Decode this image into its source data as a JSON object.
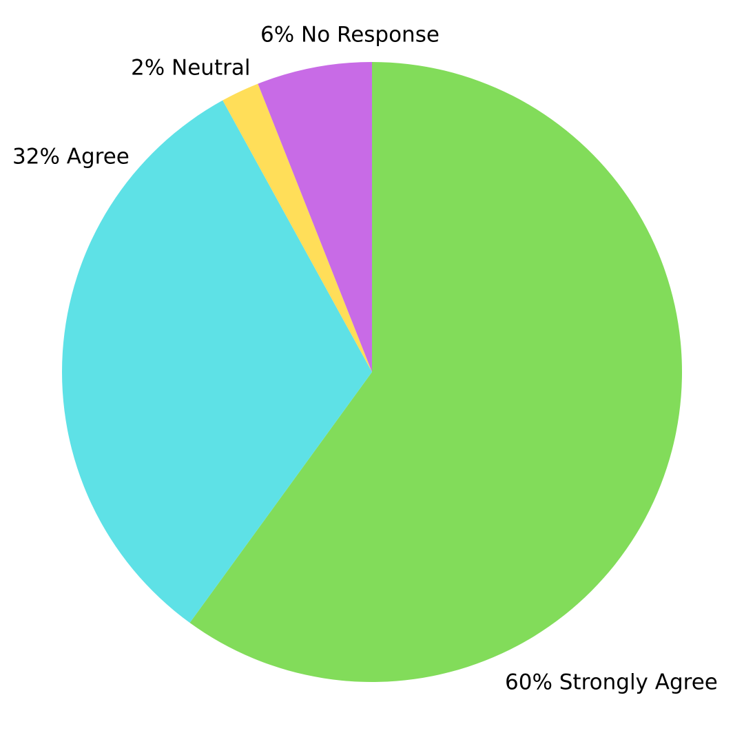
{
  "chart_data": {
    "type": "pie",
    "values": [
      60,
      32,
      2,
      6
    ],
    "value_labels": [
      "60% Strongly Agree",
      "32% Agree",
      "2% Neutral",
      "6% No Response"
    ],
    "colors": [
      "#82dc5a",
      "#5ee1e6",
      "#ffde59",
      "#c86be6"
    ]
  }
}
